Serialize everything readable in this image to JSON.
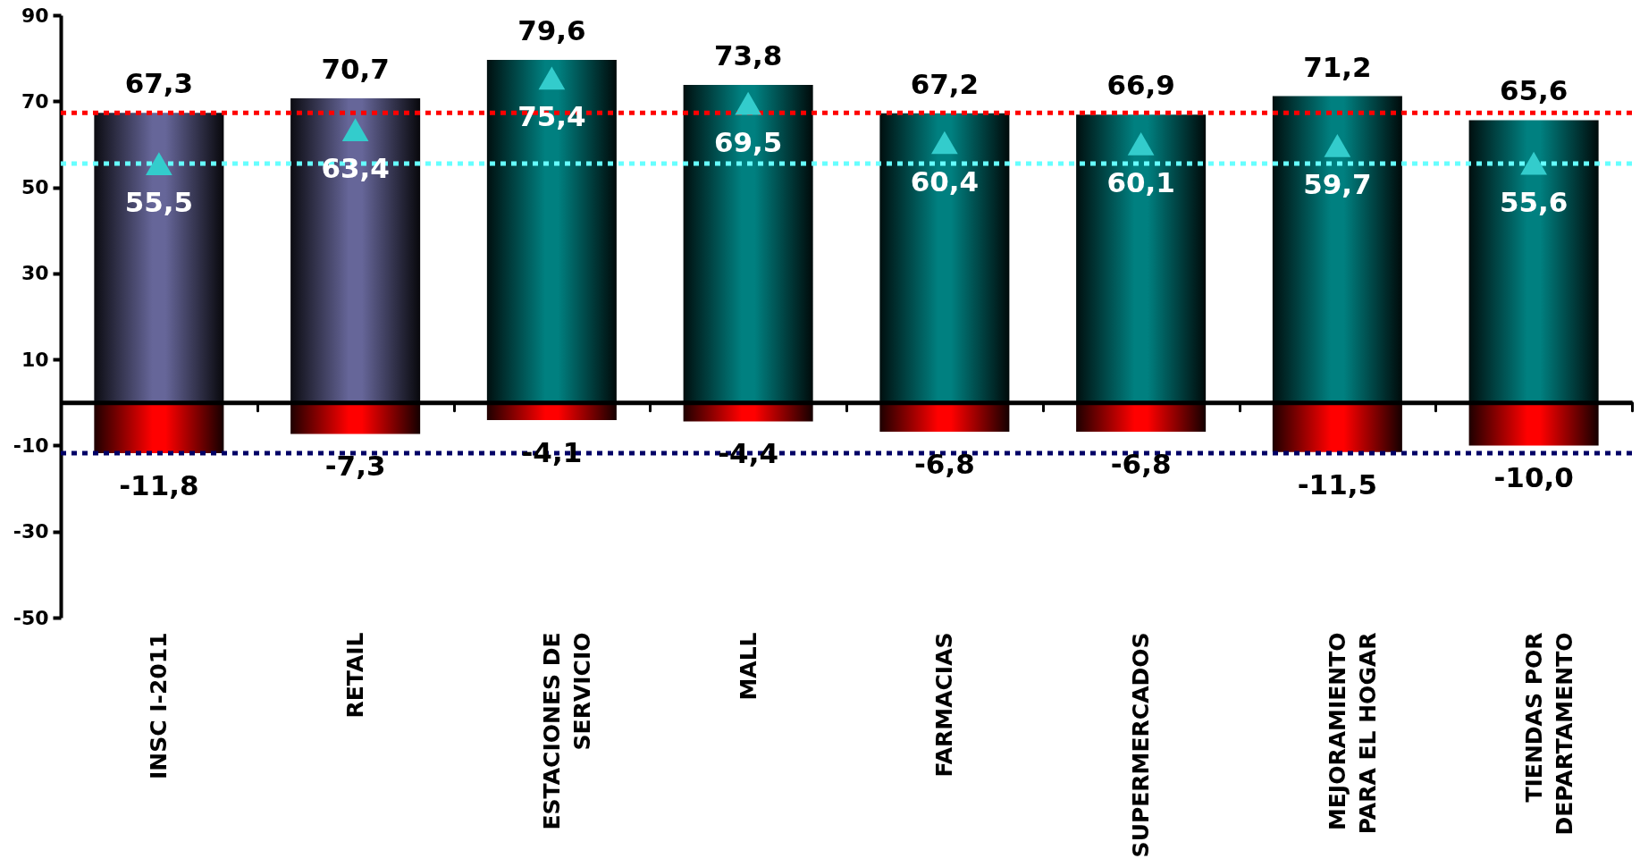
{
  "chart_data": {
    "type": "bar",
    "stacked": true,
    "categories": [
      "INSC I-2011",
      "RETAIL",
      "ESTACIONES DE SERVICIO",
      "MALL",
      "FARMACIAS",
      "SUPERMERCADOS",
      "MEJORAMIENTO PARA EL HOGAR",
      "TIENDAS POR DEPARTAMENTO"
    ],
    "ylim": [
      -50,
      90
    ],
    "yticks": [
      -50,
      -30,
      -10,
      10,
      30,
      50,
      70,
      90
    ],
    "series": [
      {
        "colors": [
          "#666699",
          "#666699",
          "#008080",
          "#008080",
          "#008080",
          "#008080",
          "#008080",
          "#008080"
        ],
        "values": [
          67.3,
          70.7,
          79.6,
          73.8,
          67.2,
          66.9,
          71.2,
          65.6
        ],
        "value_labels": [
          "67,3",
          "70,7",
          "79,6",
          "73,8",
          "67,2",
          "66,9",
          "71,2",
          "65,6"
        ]
      },
      {
        "color": "#ff0000",
        "values": [
          -11.8,
          -7.3,
          -4.1,
          -4.4,
          -6.8,
          -6.8,
          -11.5,
          -10.0
        ],
        "value_labels": [
          "-11,8",
          "-7,3",
          "-4,1",
          "-4,4",
          "-6,8",
          "-6,8",
          "-11,5",
          "-10,0"
        ]
      },
      {
        "type": "scatter",
        "color": "#33cccc",
        "marker": "triangle",
        "x": [
          "INSC I-2011",
          "RETAIL",
          "ESTACIONES DE SERVICIO",
          "MALL",
          "FARMACIAS",
          "SUPERMERCADOS",
          "MEJORAMIENTO PARA EL HOGAR",
          "TIENDAS POR DEPARTAMENTO"
        ],
        "values": [
          55.5,
          63.4,
          75.4,
          69.5,
          60.4,
          60.1,
          59.7,
          55.6
        ],
        "value_labels": [
          "55,5",
          "63,4",
          "75,4",
          "69,5",
          "60,4",
          "60,1",
          "59,7",
          "55,6"
        ]
      }
    ],
    "ref_lines": [
      {
        "axis": "y",
        "value": 67.3,
        "color": "#ff0000",
        "line_style": "dotted"
      },
      {
        "axis": "y",
        "value": 55.5,
        "color": "#66ffff",
        "line_style": "dotted"
      },
      {
        "axis": "y",
        "value": -11.8,
        "color": "#000066",
        "line_style": "dotted"
      }
    ]
  }
}
